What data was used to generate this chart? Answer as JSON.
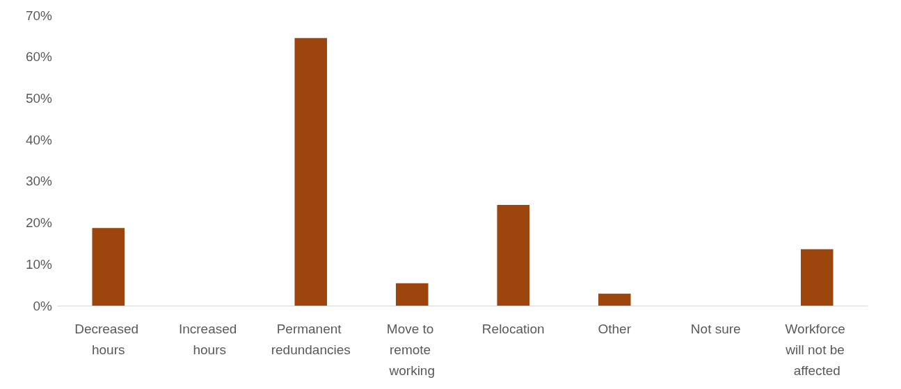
{
  "chart_data": {
    "type": "bar",
    "categories": [
      "Decreased hours",
      "Increased hours",
      "Permanent redundancies",
      "Move to remote working",
      "Relocation",
      "Other",
      "Not sure",
      "Workforce will not be affected"
    ],
    "values": [
      18.7,
      0,
      64.5,
      5.4,
      24.3,
      2.9,
      0,
      13.6
    ],
    "color": "#9c450c",
    "ylim": [
      0,
      70
    ],
    "yticks": [
      {
        "value": 0,
        "label": "0%"
      },
      {
        "value": 10,
        "label": "10%"
      },
      {
        "value": 20,
        "label": "20%"
      },
      {
        "value": 30,
        "label": "30%"
      },
      {
        "value": 40,
        "label": "40%"
      },
      {
        "value": 50,
        "label": "50%"
      },
      {
        "value": 60,
        "label": "60%"
      },
      {
        "value": 70,
        "label": "70%"
      }
    ],
    "grid": false
  }
}
